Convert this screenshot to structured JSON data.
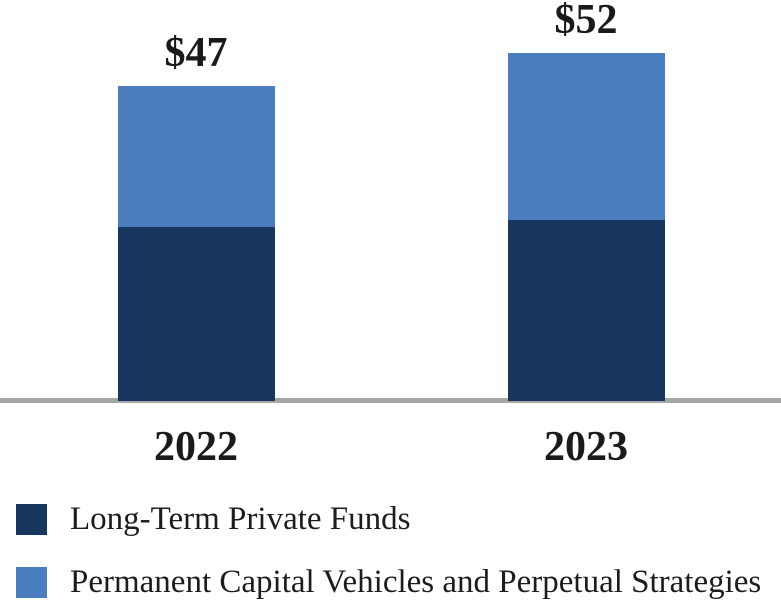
{
  "chart_data": {
    "type": "bar",
    "stacked": true,
    "title": "",
    "categories": [
      "2022",
      "2023"
    ],
    "series": [
      {
        "name": "Long-Term Private Funds",
        "color": "#17375E",
        "values": [
          26,
          27
        ]
      },
      {
        "name": "Permanent Capital Vehicles and Perpetual Strategies",
        "color": "#4A7EBE",
        "values": [
          21,
          25
        ]
      }
    ],
    "totals": [
      47,
      52
    ],
    "total_labels": [
      "$47",
      "$52"
    ],
    "series_values_note": "segment splits estimated from bar pixel proportions; only the stack totals are labeled in the image",
    "xlabel": "",
    "ylabel": "",
    "grid": false,
    "axis_baseline_color": "#A6A6A6",
    "text_color": "#1A1A1A",
    "legend_position": "bottom-left"
  }
}
